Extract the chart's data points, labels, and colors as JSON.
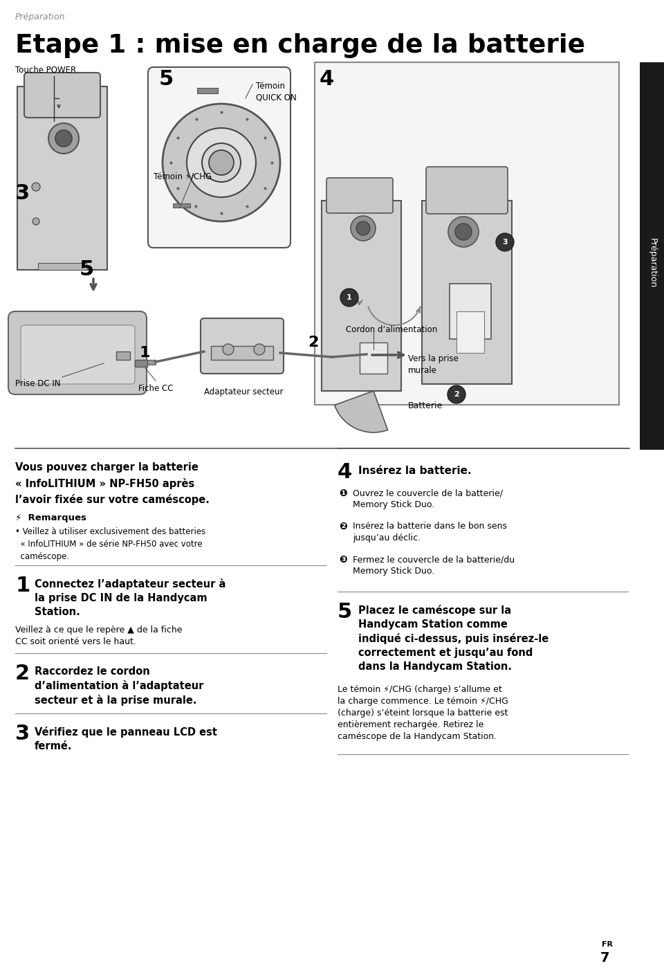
{
  "bg_color": "#ffffff",
  "page_width": 9.6,
  "page_height": 13.99,
  "preparation_italic": "Préparation",
  "main_title": "Etape 1 : mise en charge de la batterie",
  "sidebar_text": "Préparation",
  "remarques_header": "⚡  Remarques",
  "remarques_bullet": "• Veillez à utiliser exclusivement des batteries\n  « InfoLITHIUM » de série NP-FH50 avec votre\n  caméscope.",
  "intro_text_line1": "Vous pouvez charger la batterie",
  "intro_text_line2": "« InfoLITHIUM » NP-FH50 après",
  "intro_text_line3": "l’avoir fixée sur votre caméscope.",
  "step1_num": "1",
  "step1_bold": "Connectez l’adaptateur secteur à\nla prise DC IN de la Handycam\nStation.",
  "step1_normal": "Veillez à ce que le repère ▲ de la fiche\nCC soit orienté vers le haut.",
  "step2_num": "2",
  "step2_bold": "Raccordez le cordon\nd’alimentation à l’adaptateur\nsecteur et à la prise murale.",
  "step3_num": "3",
  "step3_bold": "Vérifiez que le panneau LCD est\nfermé.",
  "step4_num": "4",
  "step4_bold": "Insérez la batterie.",
  "step4_item1_circle": "❶",
  "step4_item1": "Ouvrez le couvercle de la batterie/\nMemory Stick Duo.",
  "step4_item2_circle": "❷",
  "step4_item2": "Insérez la batterie dans le bon sens\njusqu’au déclic.",
  "step4_item3_circle": "❸",
  "step4_item3": "Fermez le couvercle de la batterie/du\nMemory Stick Duo.",
  "step5_num": "5",
  "step5_bold": "Placez le caméscope sur la\nHandycam Station comme\nindiqué ci-dessus, puis insérez-le\ncorrectement et jusqu’au fond\ndans la Handycam Station.",
  "step5_normal": "Le témoin ⚡/CHG (charge) s’allume et\nla charge commence. Le témoin ⚡/CHG\n(charge) s’éteint lorsque la batterie est\nentièrement rechargée. Retirez le\ncaméscope de la Handycam Station.",
  "diag_touche_power": "Touche POWER",
  "diag_num3": "3",
  "diag_num5_top": "5",
  "diag_temoin_quick_on": "Témoin\nQUICK ON",
  "diag_temoin_chg": "Témoin ⚡/CHG",
  "diag_num4": "4",
  "diag_batterie": "Batterie",
  "diag_num5_bot": "5",
  "diag_prise_dc": "Prise DC IN",
  "diag_fiche_cc": "Fiche CC",
  "diag_num1": "1",
  "diag_adaptateur": "Adaptateur secteur",
  "diag_num2": "2",
  "diag_cordon": "Cordon d’alimentation",
  "diag_vers_prise": "Vers la prise\nmurale",
  "page_fr": "FR",
  "page_num": "7"
}
